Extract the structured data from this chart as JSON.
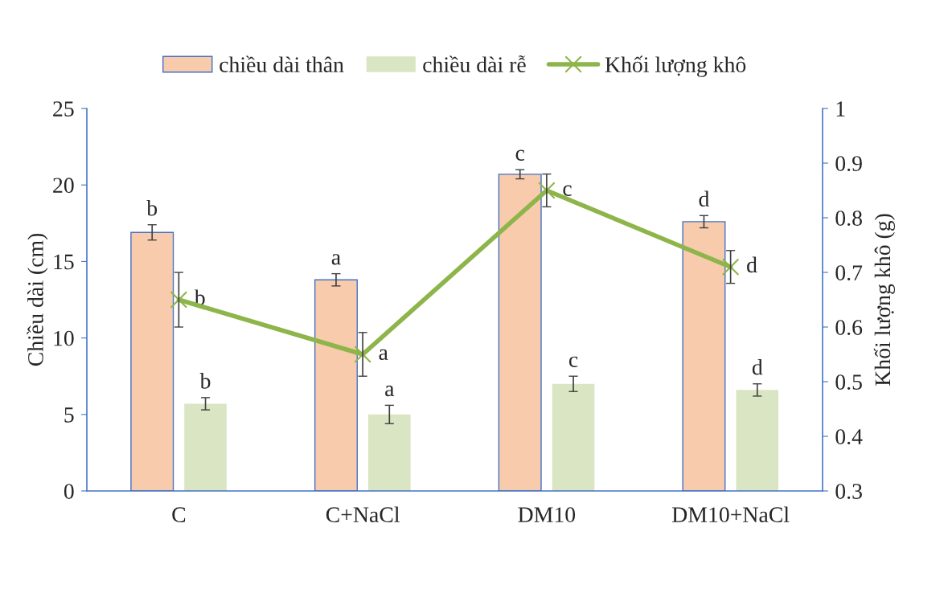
{
  "chart_data": {
    "type": "bar",
    "categories": [
      "C",
      "C+NaCl",
      "DM10",
      "DM10+NaCl"
    ],
    "ylabel": "Chiều dài (cm)",
    "y2label": "Khối lượng khô (g)",
    "ylim": [
      0,
      25
    ],
    "yticks": [
      0,
      5,
      10,
      15,
      20,
      25
    ],
    "y2lim": [
      0.3,
      1
    ],
    "y2ticks": [
      0.3,
      0.4,
      0.5,
      0.6,
      0.7,
      0.8,
      0.9,
      1
    ],
    "legend": "top",
    "grid": false,
    "series": [
      {
        "name": "chiều dài thân",
        "color": "#f8cbad",
        "values": [
          16.9,
          13.8,
          20.7,
          17.6
        ],
        "errors": [
          0.5,
          0.4,
          0.3,
          0.4
        ],
        "value_labels": [
          "b",
          "a",
          "c",
          "d"
        ]
      },
      {
        "name": "chiều dài rễ",
        "color": "#d9e5c3",
        "values": [
          5.7,
          5.0,
          7.0,
          6.6
        ],
        "errors": [
          0.4,
          0.6,
          0.5,
          0.4
        ],
        "value_labels": [
          "b",
          "a",
          "c",
          "d"
        ]
      },
      {
        "name": "Khối lượng khô",
        "type": "line",
        "axis": "y2",
        "color": "#8db54a",
        "marker": "cross",
        "values": [
          0.65,
          0.55,
          0.85,
          0.71
        ],
        "errors": [
          0.05,
          0.04,
          0.03,
          0.03
        ],
        "value_labels": [
          "b",
          "a",
          "c",
          "d"
        ]
      }
    ]
  }
}
